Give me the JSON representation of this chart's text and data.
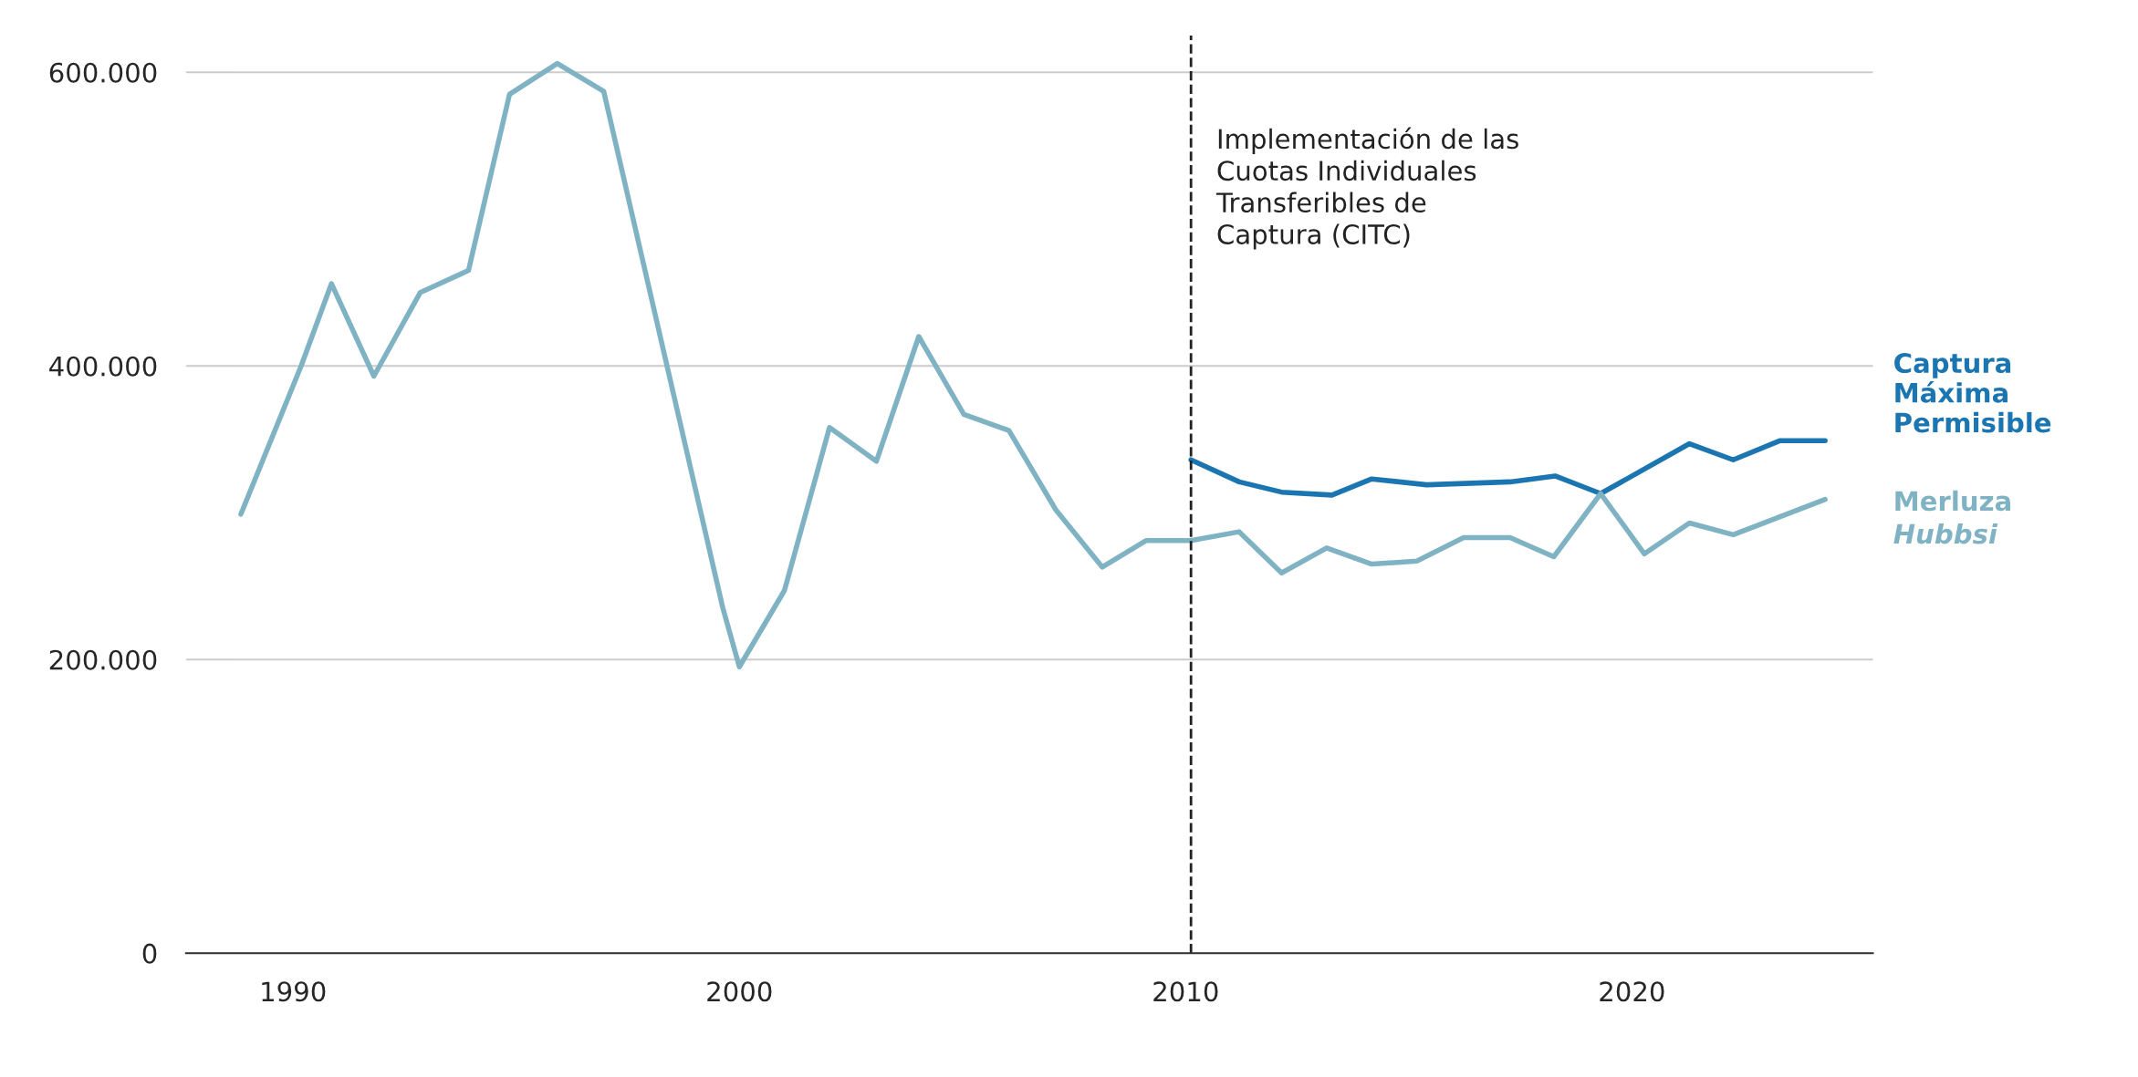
{
  "chart_data": {
    "type": "line",
    "series": [
      {
        "name": "Captura Máxima Permisible",
        "color": "#1a75b0",
        "x": [
          2010.12,
          2011.2,
          2012.15,
          2013.28,
          2014.17,
          2015.4,
          2017.27,
          2018.28,
          2019.3,
          2021.29,
          2022.27,
          2023.31,
          2024.33
        ],
        "values": [
          336000,
          321000,
          314000,
          312000,
          323000,
          319000,
          321000,
          325000,
          313000,
          347000,
          336000,
          349000,
          349000
        ]
      },
      {
        "name": "Merluza Hubbsi",
        "color": "#7fb3c4",
        "x": [
          1988.83,
          1990.18,
          1990.86,
          1991.81,
          1992.85,
          1993.93,
          1994.85,
          1995.92,
          1996.96,
          1999.63,
          2000.0,
          2001.01,
          2002.02,
          2003.07,
          2004.02,
          2005.03,
          2006.04,
          2007.09,
          2008.13,
          2009.11,
          2010.12,
          2011.2,
          2012.15,
          2013.16,
          2014.17,
          2015.18,
          2016.23,
          2017.27,
          2018.25,
          2019.3,
          2020.28,
          2021.29,
          2022.27,
          2024.33
        ],
        "values": [
          299000,
          400000,
          456000,
          393000,
          450000,
          465000,
          585000,
          606000,
          587000,
          235000,
          195000,
          247000,
          358000,
          335000,
          420000,
          367000,
          356000,
          302000,
          263000,
          281000,
          281000,
          287000,
          259000,
          276000,
          265000,
          267000,
          283000,
          283000,
          270000,
          313000,
          272000,
          293000,
          285000,
          309000
        ]
      }
    ],
    "xlim": [
      1987.6,
      2025.4
    ],
    "xticks": [
      1990,
      2000,
      2010,
      2020
    ],
    "ylim": [
      0,
      625000
    ],
    "yticks": [
      {
        "value": 0,
        "label": "0"
      },
      {
        "value": 200000,
        "label": "200.000"
      },
      {
        "value": 400000,
        "label": "400.000"
      },
      {
        "value": 600000,
        "label": "600.000"
      }
    ],
    "grid": "y",
    "legend": false,
    "ref_lines": [
      {
        "axis": "x",
        "value": 2010.12,
        "label": "Implementación de las\nCuotas Individuales\nTransferibles de\nCaptura (CITC)",
        "color": "#222222",
        "line_style": "dashed"
      }
    ]
  }
}
